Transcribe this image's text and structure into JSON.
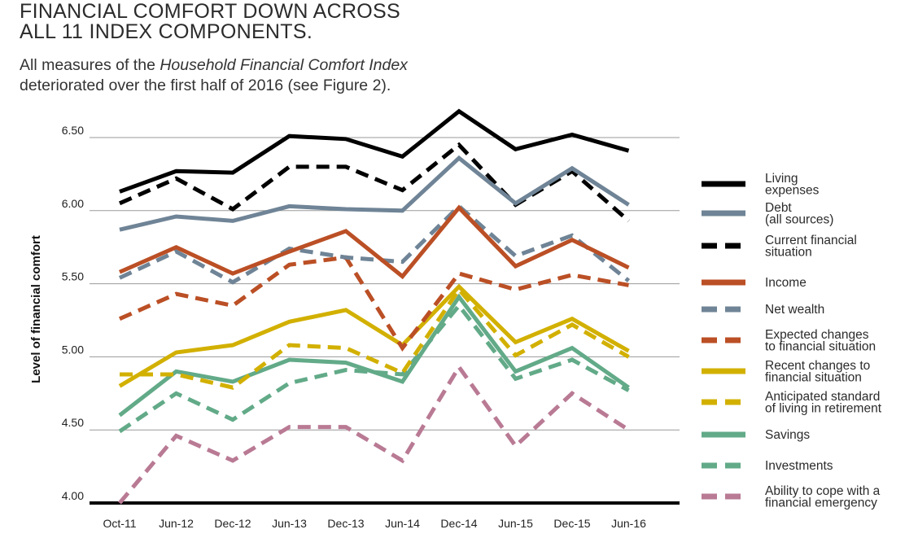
{
  "header": {
    "title_line1": "FINANCIAL COMFORT DOWN ACROSS",
    "title_line2": "ALL 11 INDEX COMPONENTS.",
    "subtitle_pre": "All measures of the ",
    "subtitle_italic": "Household Financial Comfort Index",
    "subtitle_line2": "deteriorated over the first half of 2016 (see Figure 2)."
  },
  "chart_data": {
    "type": "line",
    "ylabel": "Level of financial comfort",
    "xlabel": "",
    "ylim": [
      4.0,
      6.65
    ],
    "yticks": [
      "4.00",
      "4.50",
      "5.00",
      "5.50",
      "6.00",
      "6.50"
    ],
    "ytick_values": [
      4.0,
      4.5,
      5.0,
      5.5,
      6.0,
      6.5
    ],
    "grid": true,
    "legend_position": "right",
    "categories": [
      "Oct-11",
      "Jun-12",
      "Dec-12",
      "Jun-13",
      "Dec-13",
      "Jun-14",
      "Dec-14",
      "Jun-15",
      "Dec-15",
      "Jun-16"
    ],
    "series": [
      {
        "name": "Living\nexpenses",
        "color": "#000000",
        "dashed": false,
        "values": [
          6.13,
          6.27,
          6.26,
          6.51,
          6.49,
          6.37,
          6.68,
          6.42,
          6.52,
          6.41
        ]
      },
      {
        "name": "Debt\n(all sources)",
        "color": "#6f8496",
        "dashed": false,
        "values": [
          5.87,
          5.96,
          5.93,
          6.03,
          6.01,
          6.0,
          6.36,
          6.05,
          6.29,
          6.04
        ]
      },
      {
        "name": "Current financial\nsituation",
        "color": "#000000",
        "dashed": true,
        "values": [
          6.05,
          6.22,
          6.01,
          6.3,
          6.3,
          6.14,
          6.45,
          6.04,
          6.27,
          5.93
        ]
      },
      {
        "name": "Income",
        "color": "#bb4f25",
        "dashed": false,
        "values": [
          5.58,
          5.75,
          5.57,
          5.72,
          5.86,
          5.55,
          6.02,
          5.62,
          5.8,
          5.61
        ]
      },
      {
        "name": "Net wealth",
        "color": "#6f8496",
        "dashed": true,
        "values": [
          5.54,
          5.72,
          5.51,
          5.74,
          5.68,
          5.65,
          6.03,
          5.69,
          5.83,
          5.52
        ]
      },
      {
        "name": "Expected changes\nto financial situation",
        "color": "#bb4f25",
        "dashed": true,
        "values": [
          5.26,
          5.43,
          5.35,
          5.63,
          5.68,
          5.06,
          5.57,
          5.46,
          5.56,
          5.49
        ]
      },
      {
        "name": "Recent changes to\nfinancial situation",
        "color": "#d2b000",
        "dashed": false,
        "values": [
          4.8,
          5.03,
          5.08,
          5.24,
          5.32,
          5.08,
          5.48,
          5.1,
          5.26,
          5.04
        ]
      },
      {
        "name": "Anticipated standard\nof living in retirement",
        "color": "#d2b000",
        "dashed": true,
        "values": [
          4.88,
          4.88,
          4.79,
          5.08,
          5.06,
          4.89,
          5.46,
          5.01,
          5.22,
          5.0
        ]
      },
      {
        "name": "Savings",
        "color": "#62aa88",
        "dashed": false,
        "values": [
          4.6,
          4.9,
          4.83,
          4.98,
          4.96,
          4.83,
          5.41,
          4.9,
          5.06,
          4.79
        ]
      },
      {
        "name": "Investments",
        "color": "#62aa88",
        "dashed": true,
        "values": [
          4.49,
          4.75,
          4.57,
          4.82,
          4.91,
          4.88,
          5.35,
          4.85,
          4.98,
          4.77
        ]
      },
      {
        "name": "Ability to cope with a\nfinancial emergency",
        "color": "#b97a94",
        "dashed": true,
        "values": [
          4.0,
          4.46,
          4.29,
          4.52,
          4.52,
          4.29,
          4.93,
          4.39,
          4.75,
          4.5
        ]
      }
    ]
  }
}
